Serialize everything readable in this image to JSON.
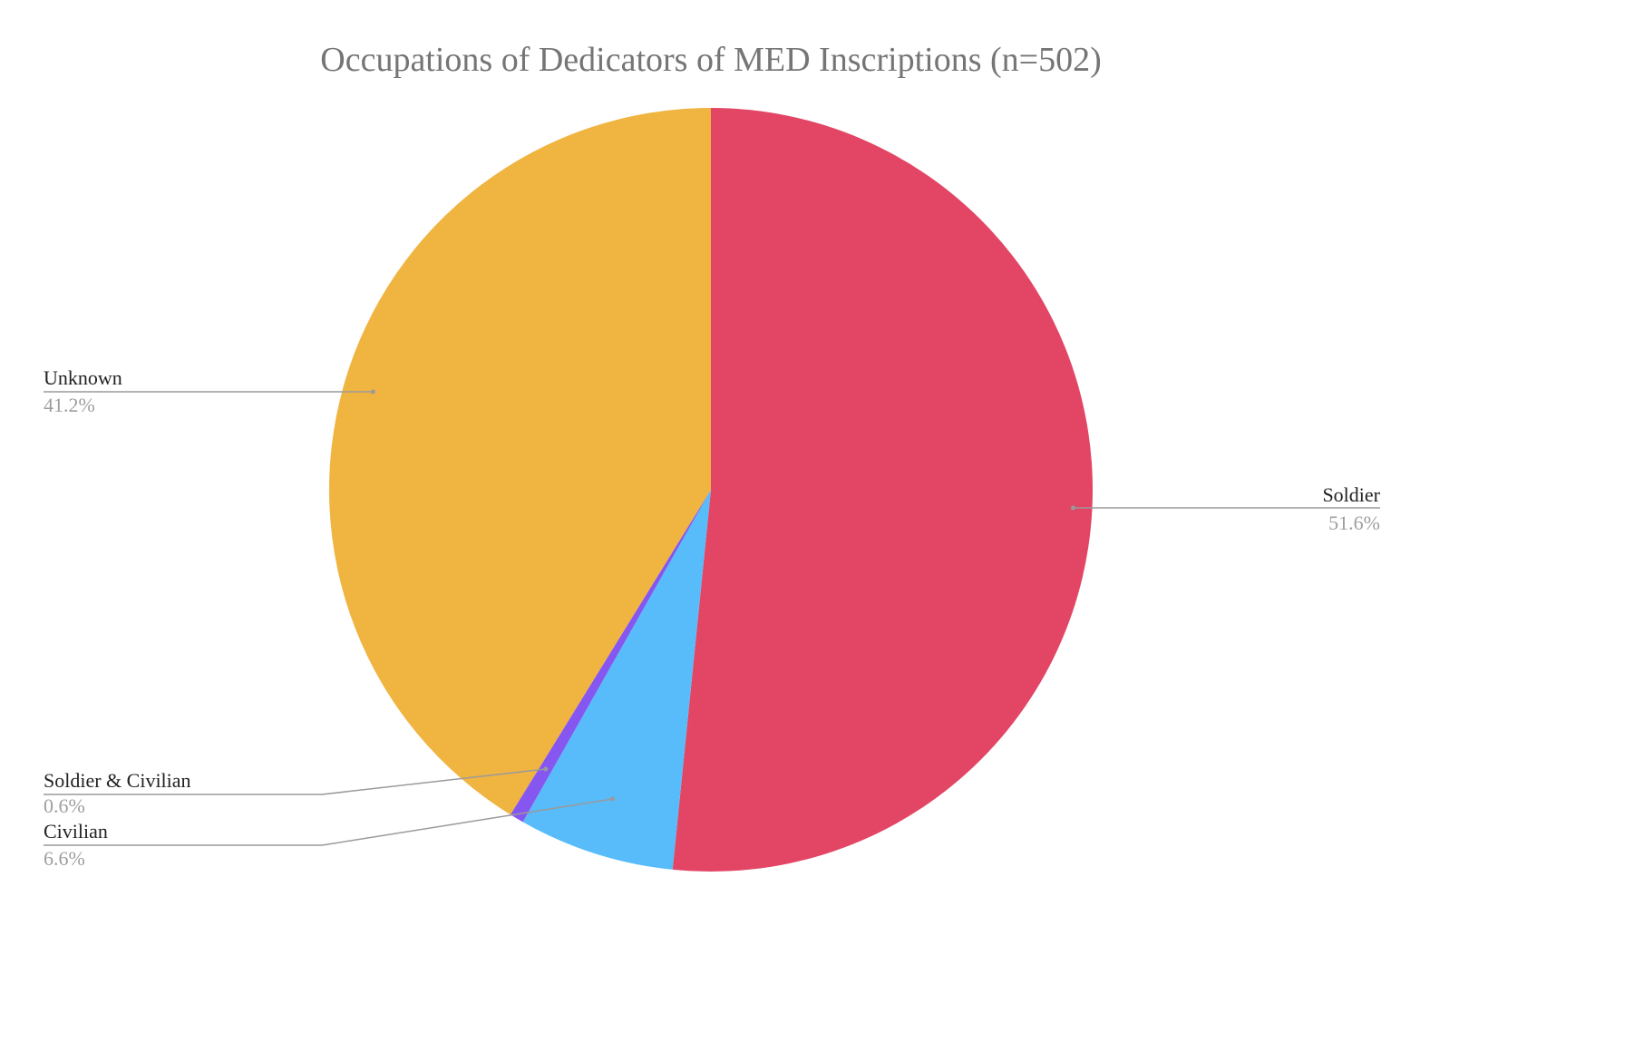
{
  "chart_data": {
    "type": "pie",
    "title": "Occupations of Dedicators of MED Inscriptions (n=502)",
    "start_angle_deg": 0,
    "direction": "clockwise",
    "slices": [
      {
        "label": "Soldier",
        "value": 51.6,
        "value_label": "51.6%",
        "color": "#e34565"
      },
      {
        "label": "Civilian",
        "value": 6.6,
        "value_label": "6.6%",
        "color": "#57bcf9"
      },
      {
        "label": "Soldier & Civilian",
        "value": 0.6,
        "value_label": "0.6%",
        "color": "#8656f0"
      },
      {
        "label": "Unknown",
        "value": 41.2,
        "value_label": "41.2%",
        "color": "#f0b441"
      }
    ],
    "legend": "none",
    "labels": "outside with leader lines"
  }
}
